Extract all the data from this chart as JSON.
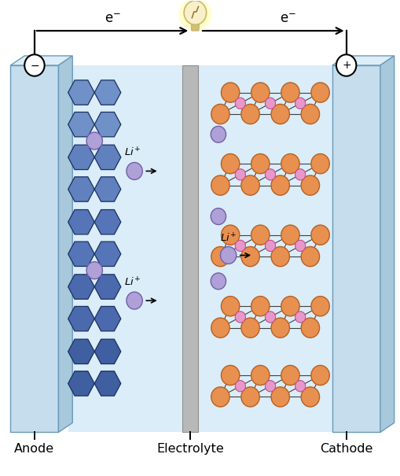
{
  "fig_width": 5.1,
  "fig_height": 6.05,
  "dpi": 100,
  "bg_color": "#ffffff",
  "anode_label": "Anode",
  "cathode_label": "Cathode",
  "electrolyte_label": "Electrolyte",
  "anode_color_face": "#c5dded",
  "anode_color_edge": "#6a9ab8",
  "anode_top_face": "#ddeef8",
  "anode_right_face": "#a8c8dc",
  "electrolyte_color": "#daedf8",
  "separator_color": "#b8b8b8",
  "separator_edge": "#909090",
  "hex_colors": [
    "#6688bb",
    "#5577aa",
    "#4466a0",
    "#3a5a95",
    "#304f88"
  ],
  "hex_edge_color": "#1a3060",
  "li_ion_color": "#b0a0d8",
  "li_ion_edge_color": "#7060a8",
  "li_in_cathode_color": "#e898c8",
  "li_in_cathode_edge": "#c05090",
  "cathode_atom_color": "#e89050",
  "cathode_atom_edge": "#b86020",
  "wire_color": "#000000",
  "bulb_glow": "#ffffa0",
  "bulb_body": "#f8f0c8",
  "bulb_metal": "#c8b870"
}
